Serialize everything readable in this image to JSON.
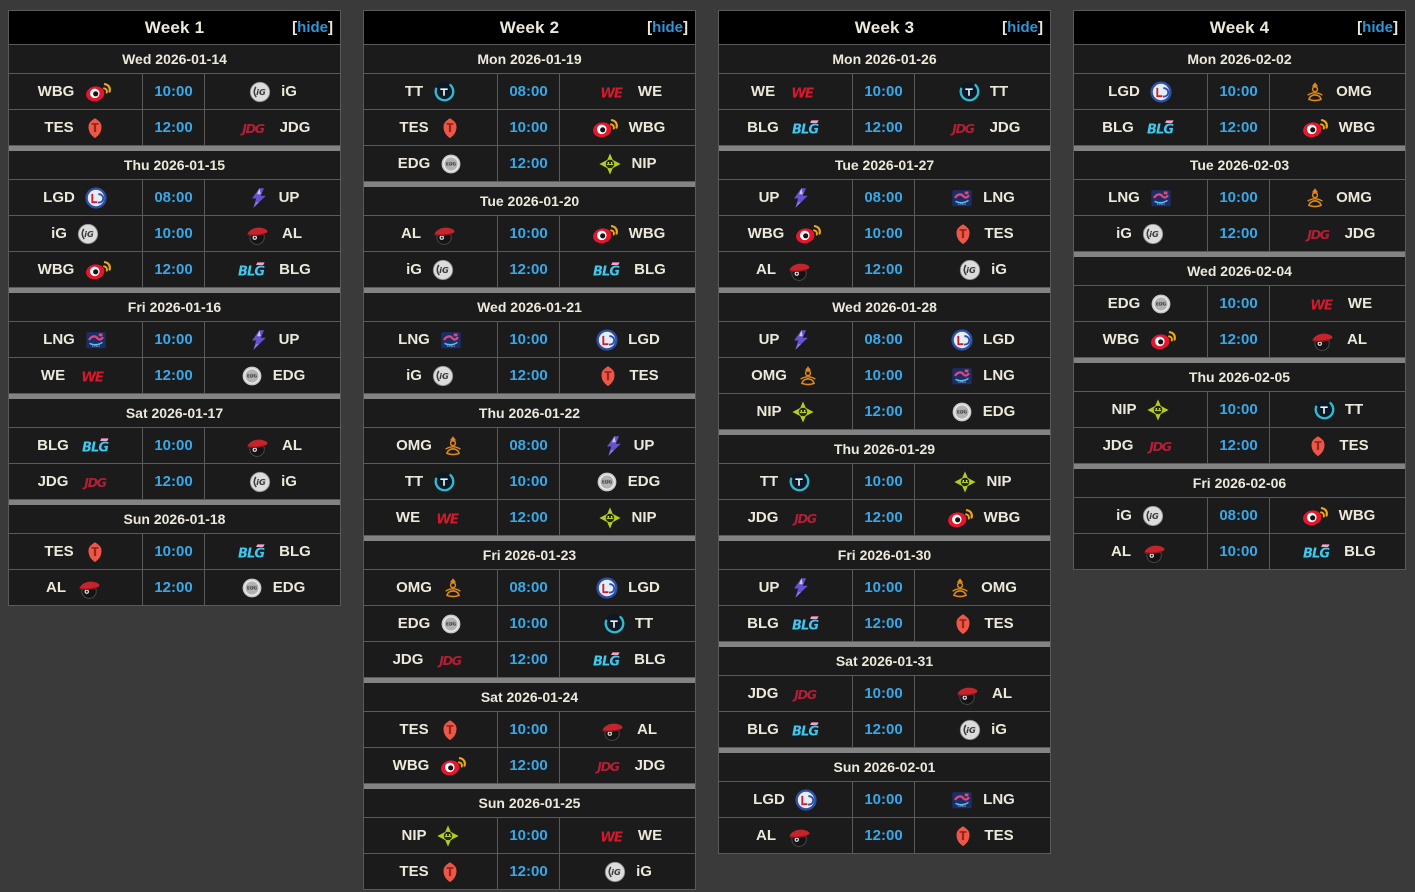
{
  "page": {
    "background": "#3a3a3a"
  },
  "colors": {
    "page_bg": "#3a3a3a",
    "week_header_bg": "#000000",
    "row_bg": "#1b1b1b",
    "border_line": "#5a5a5a",
    "day_separator": "#838383",
    "cream_text": "#ece8da",
    "time_blue": "#3aa7e8",
    "hide_link_blue": "#2e96d8"
  },
  "controls": {
    "bracket_open": "[",
    "hide_text": "hide",
    "bracket_close": "]"
  },
  "teams": {
    "WBG": {
      "label": "WBG",
      "icon": "weibo-gaming-eye-logo"
    },
    "iG": {
      "label": "iG",
      "icon": "invictus-gaming-globe-logo"
    },
    "TES": {
      "label": "TES",
      "icon": "top-esports-helmet-logo"
    },
    "JDG": {
      "label": "JDG",
      "icon": "jd-gaming-lettermark-logo"
    },
    "LGD": {
      "label": "LGD",
      "icon": "lgd-gaming-badge-logo"
    },
    "UP": {
      "label": "UP",
      "icon": "ultra-prime-bolt-logo"
    },
    "AL": {
      "label": "AL",
      "icon": "anyones-legend-hat-logo"
    },
    "BLG": {
      "label": "BLG",
      "icon": "bilibili-gaming-lettermark-logo"
    },
    "LNG": {
      "label": "LNG",
      "icon": "lng-esports-badge-logo"
    },
    "WE": {
      "label": "WE",
      "icon": "team-we-lettermark-logo"
    },
    "EDG": {
      "label": "EDG",
      "icon": "edward-gaming-badge-logo"
    },
    "TT": {
      "label": "TT",
      "icon": "thundertalk-gaming-circle-logo"
    },
    "NIP": {
      "label": "NIP",
      "icon": "ninjas-in-pyjamas-star-logo"
    },
    "OMG": {
      "label": "OMG",
      "icon": "omg-figure-logo"
    }
  },
  "weeks": [
    {
      "title": "Week 1",
      "days": [
        {
          "date": "Wed 2026-01-14",
          "matches": [
            {
              "left": "WBG",
              "time": "10:00",
              "right": "iG"
            },
            {
              "left": "TES",
              "time": "12:00",
              "right": "JDG"
            }
          ]
        },
        {
          "date": "Thu 2026-01-15",
          "matches": [
            {
              "left": "LGD",
              "time": "08:00",
              "right": "UP"
            },
            {
              "left": "iG",
              "time": "10:00",
              "right": "AL"
            },
            {
              "left": "WBG",
              "time": "12:00",
              "right": "BLG"
            }
          ]
        },
        {
          "date": "Fri 2026-01-16",
          "matches": [
            {
              "left": "LNG",
              "time": "10:00",
              "right": "UP"
            },
            {
              "left": "WE",
              "time": "12:00",
              "right": "EDG"
            }
          ]
        },
        {
          "date": "Sat 2026-01-17",
          "matches": [
            {
              "left": "BLG",
              "time": "10:00",
              "right": "AL"
            },
            {
              "left": "JDG",
              "time": "12:00",
              "right": "iG"
            }
          ]
        },
        {
          "date": "Sun 2026-01-18",
          "matches": [
            {
              "left": "TES",
              "time": "10:00",
              "right": "BLG"
            },
            {
              "left": "AL",
              "time": "12:00",
              "right": "EDG"
            }
          ]
        }
      ]
    },
    {
      "title": "Week 2",
      "days": [
        {
          "date": "Mon 2026-01-19",
          "matches": [
            {
              "left": "TT",
              "time": "08:00",
              "right": "WE"
            },
            {
              "left": "TES",
              "time": "10:00",
              "right": "WBG"
            },
            {
              "left": "EDG",
              "time": "12:00",
              "right": "NIP"
            }
          ]
        },
        {
          "date": "Tue 2026-01-20",
          "matches": [
            {
              "left": "AL",
              "time": "10:00",
              "right": "WBG"
            },
            {
              "left": "iG",
              "time": "12:00",
              "right": "BLG"
            }
          ]
        },
        {
          "date": "Wed 2026-01-21",
          "matches": [
            {
              "left": "LNG",
              "time": "10:00",
              "right": "LGD"
            },
            {
              "left": "iG",
              "time": "12:00",
              "right": "TES"
            }
          ]
        },
        {
          "date": "Thu 2026-01-22",
          "matches": [
            {
              "left": "OMG",
              "time": "08:00",
              "right": "UP"
            },
            {
              "left": "TT",
              "time": "10:00",
              "right": "EDG"
            },
            {
              "left": "WE",
              "time": "12:00",
              "right": "NIP"
            }
          ]
        },
        {
          "date": "Fri 2026-01-23",
          "matches": [
            {
              "left": "OMG",
              "time": "08:00",
              "right": "LGD"
            },
            {
              "left": "EDG",
              "time": "10:00",
              "right": "TT"
            },
            {
              "left": "JDG",
              "time": "12:00",
              "right": "BLG"
            }
          ]
        },
        {
          "date": "Sat 2026-01-24",
          "matches": [
            {
              "left": "TES",
              "time": "10:00",
              "right": "AL"
            },
            {
              "left": "WBG",
              "time": "12:00",
              "right": "JDG"
            }
          ]
        },
        {
          "date": "Sun 2026-01-25",
          "matches": [
            {
              "left": "NIP",
              "time": "10:00",
              "right": "WE"
            },
            {
              "left": "TES",
              "time": "12:00",
              "right": "iG"
            }
          ]
        }
      ]
    },
    {
      "title": "Week 3",
      "days": [
        {
          "date": "Mon 2026-01-26",
          "matches": [
            {
              "left": "WE",
              "time": "10:00",
              "right": "TT"
            },
            {
              "left": "BLG",
              "time": "12:00",
              "right": "JDG"
            }
          ]
        },
        {
          "date": "Tue 2026-01-27",
          "matches": [
            {
              "left": "UP",
              "time": "08:00",
              "right": "LNG"
            },
            {
              "left": "WBG",
              "time": "10:00",
              "right": "TES"
            },
            {
              "left": "AL",
              "time": "12:00",
              "right": "iG"
            }
          ]
        },
        {
          "date": "Wed 2026-01-28",
          "matches": [
            {
              "left": "UP",
              "time": "08:00",
              "right": "LGD"
            },
            {
              "left": "OMG",
              "time": "10:00",
              "right": "LNG"
            },
            {
              "left": "NIP",
              "time": "12:00",
              "right": "EDG"
            }
          ]
        },
        {
          "date": "Thu 2026-01-29",
          "matches": [
            {
              "left": "TT",
              "time": "10:00",
              "right": "NIP"
            },
            {
              "left": "JDG",
              "time": "12:00",
              "right": "WBG"
            }
          ]
        },
        {
          "date": "Fri 2026-01-30",
          "matches": [
            {
              "left": "UP",
              "time": "10:00",
              "right": "OMG"
            },
            {
              "left": "BLG",
              "time": "12:00",
              "right": "TES"
            }
          ]
        },
        {
          "date": "Sat 2026-01-31",
          "matches": [
            {
              "left": "JDG",
              "time": "10:00",
              "right": "AL"
            },
            {
              "left": "BLG",
              "time": "12:00",
              "right": "iG"
            }
          ]
        },
        {
          "date": "Sun 2026-02-01",
          "matches": [
            {
              "left": "LGD",
              "time": "10:00",
              "right": "LNG"
            },
            {
              "left": "AL",
              "time": "12:00",
              "right": "TES"
            }
          ]
        }
      ]
    },
    {
      "title": "Week 4",
      "days": [
        {
          "date": "Mon 2026-02-02",
          "matches": [
            {
              "left": "LGD",
              "time": "10:00",
              "right": "OMG"
            },
            {
              "left": "BLG",
              "time": "12:00",
              "right": "WBG"
            }
          ]
        },
        {
          "date": "Tue 2026-02-03",
          "matches": [
            {
              "left": "LNG",
              "time": "10:00",
              "right": "OMG"
            },
            {
              "left": "iG",
              "time": "12:00",
              "right": "JDG"
            }
          ]
        },
        {
          "date": "Wed 2026-02-04",
          "matches": [
            {
              "left": "EDG",
              "time": "10:00",
              "right": "WE"
            },
            {
              "left": "WBG",
              "time": "12:00",
              "right": "AL"
            }
          ]
        },
        {
          "date": "Thu 2026-02-05",
          "matches": [
            {
              "left": "NIP",
              "time": "10:00",
              "right": "TT"
            },
            {
              "left": "JDG",
              "time": "12:00",
              "right": "TES"
            }
          ]
        },
        {
          "date": "Fri 2026-02-06",
          "matches": [
            {
              "left": "iG",
              "time": "08:00",
              "right": "WBG"
            },
            {
              "left": "AL",
              "time": "10:00",
              "right": "BLG"
            }
          ]
        }
      ]
    }
  ]
}
